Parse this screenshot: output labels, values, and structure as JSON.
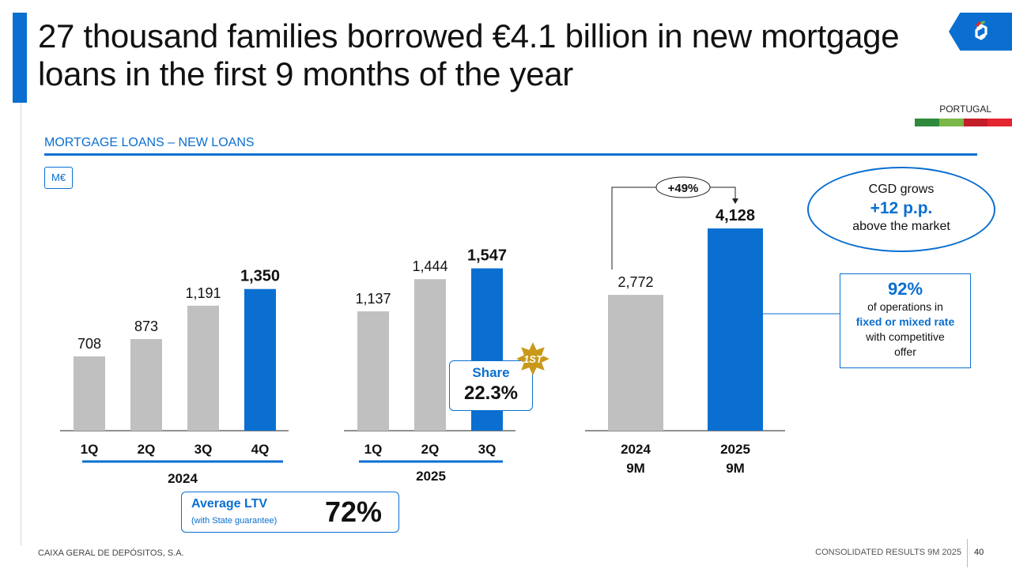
{
  "title": "27 thousand families borrowed €4.1 billion in new mortgage loans in the first 9 months of the year",
  "country_tag": "PORTUGAL",
  "flag_colors": [
    "#2e8b3e",
    "#7ab648",
    "#c41e2a",
    "#e3262f"
  ],
  "section_title": "MORTGAGE LOANS – NEW LOANS",
  "unit": "M€",
  "colors": {
    "accent": "#0a6fd0",
    "grey_bar": "#c0c0c0",
    "gold_star": "#c99a1a"
  },
  "chart_data": [
    {
      "type": "bar",
      "group": "2024",
      "categories": [
        "1Q",
        "2Q",
        "3Q",
        "4Q"
      ],
      "values": [
        708,
        873,
        1191,
        1350
      ],
      "value_labels": [
        "708",
        "873",
        "1,191",
        "1,350"
      ],
      "highlight_index": 3,
      "ylim": [
        0,
        1600
      ]
    },
    {
      "type": "bar",
      "group": "2025",
      "categories": [
        "1Q",
        "2Q",
        "3Q"
      ],
      "values": [
        1137,
        1444,
        1547
      ],
      "value_labels": [
        "1,137",
        "1,444",
        "1,547"
      ],
      "highlight_index": 2,
      "ylim": [
        0,
        1600
      ]
    },
    {
      "type": "bar",
      "categories": [
        "2024\n9M",
        "2025\n9M"
      ],
      "values": [
        2772,
        4128
      ],
      "value_labels": [
        "2,772",
        "4,128"
      ],
      "highlight_index": 1,
      "growth_label": "+49%",
      "ylim": [
        0,
        4900
      ]
    }
  ],
  "share": {
    "label": "Share",
    "value": "22.3%",
    "rank": "1ST"
  },
  "ltv": {
    "label": "Average LTV",
    "note": "(with State guarantee)",
    "value": "72%"
  },
  "cgd_callout": {
    "line1": "CGD grows",
    "line2": "+12 p.p.",
    "line3": "above the market"
  },
  "fixed_callout": {
    "pct": "92%",
    "line1": "of operations in",
    "highlight": "fixed or mixed rate",
    "line2": "with competitive",
    "line3": "offer"
  },
  "footer": {
    "left": "CAIXA GERAL DE DEPÓSITOS, S.A.",
    "right": "CONSOLIDATED RESULTS 9M 2025",
    "page": "40"
  }
}
